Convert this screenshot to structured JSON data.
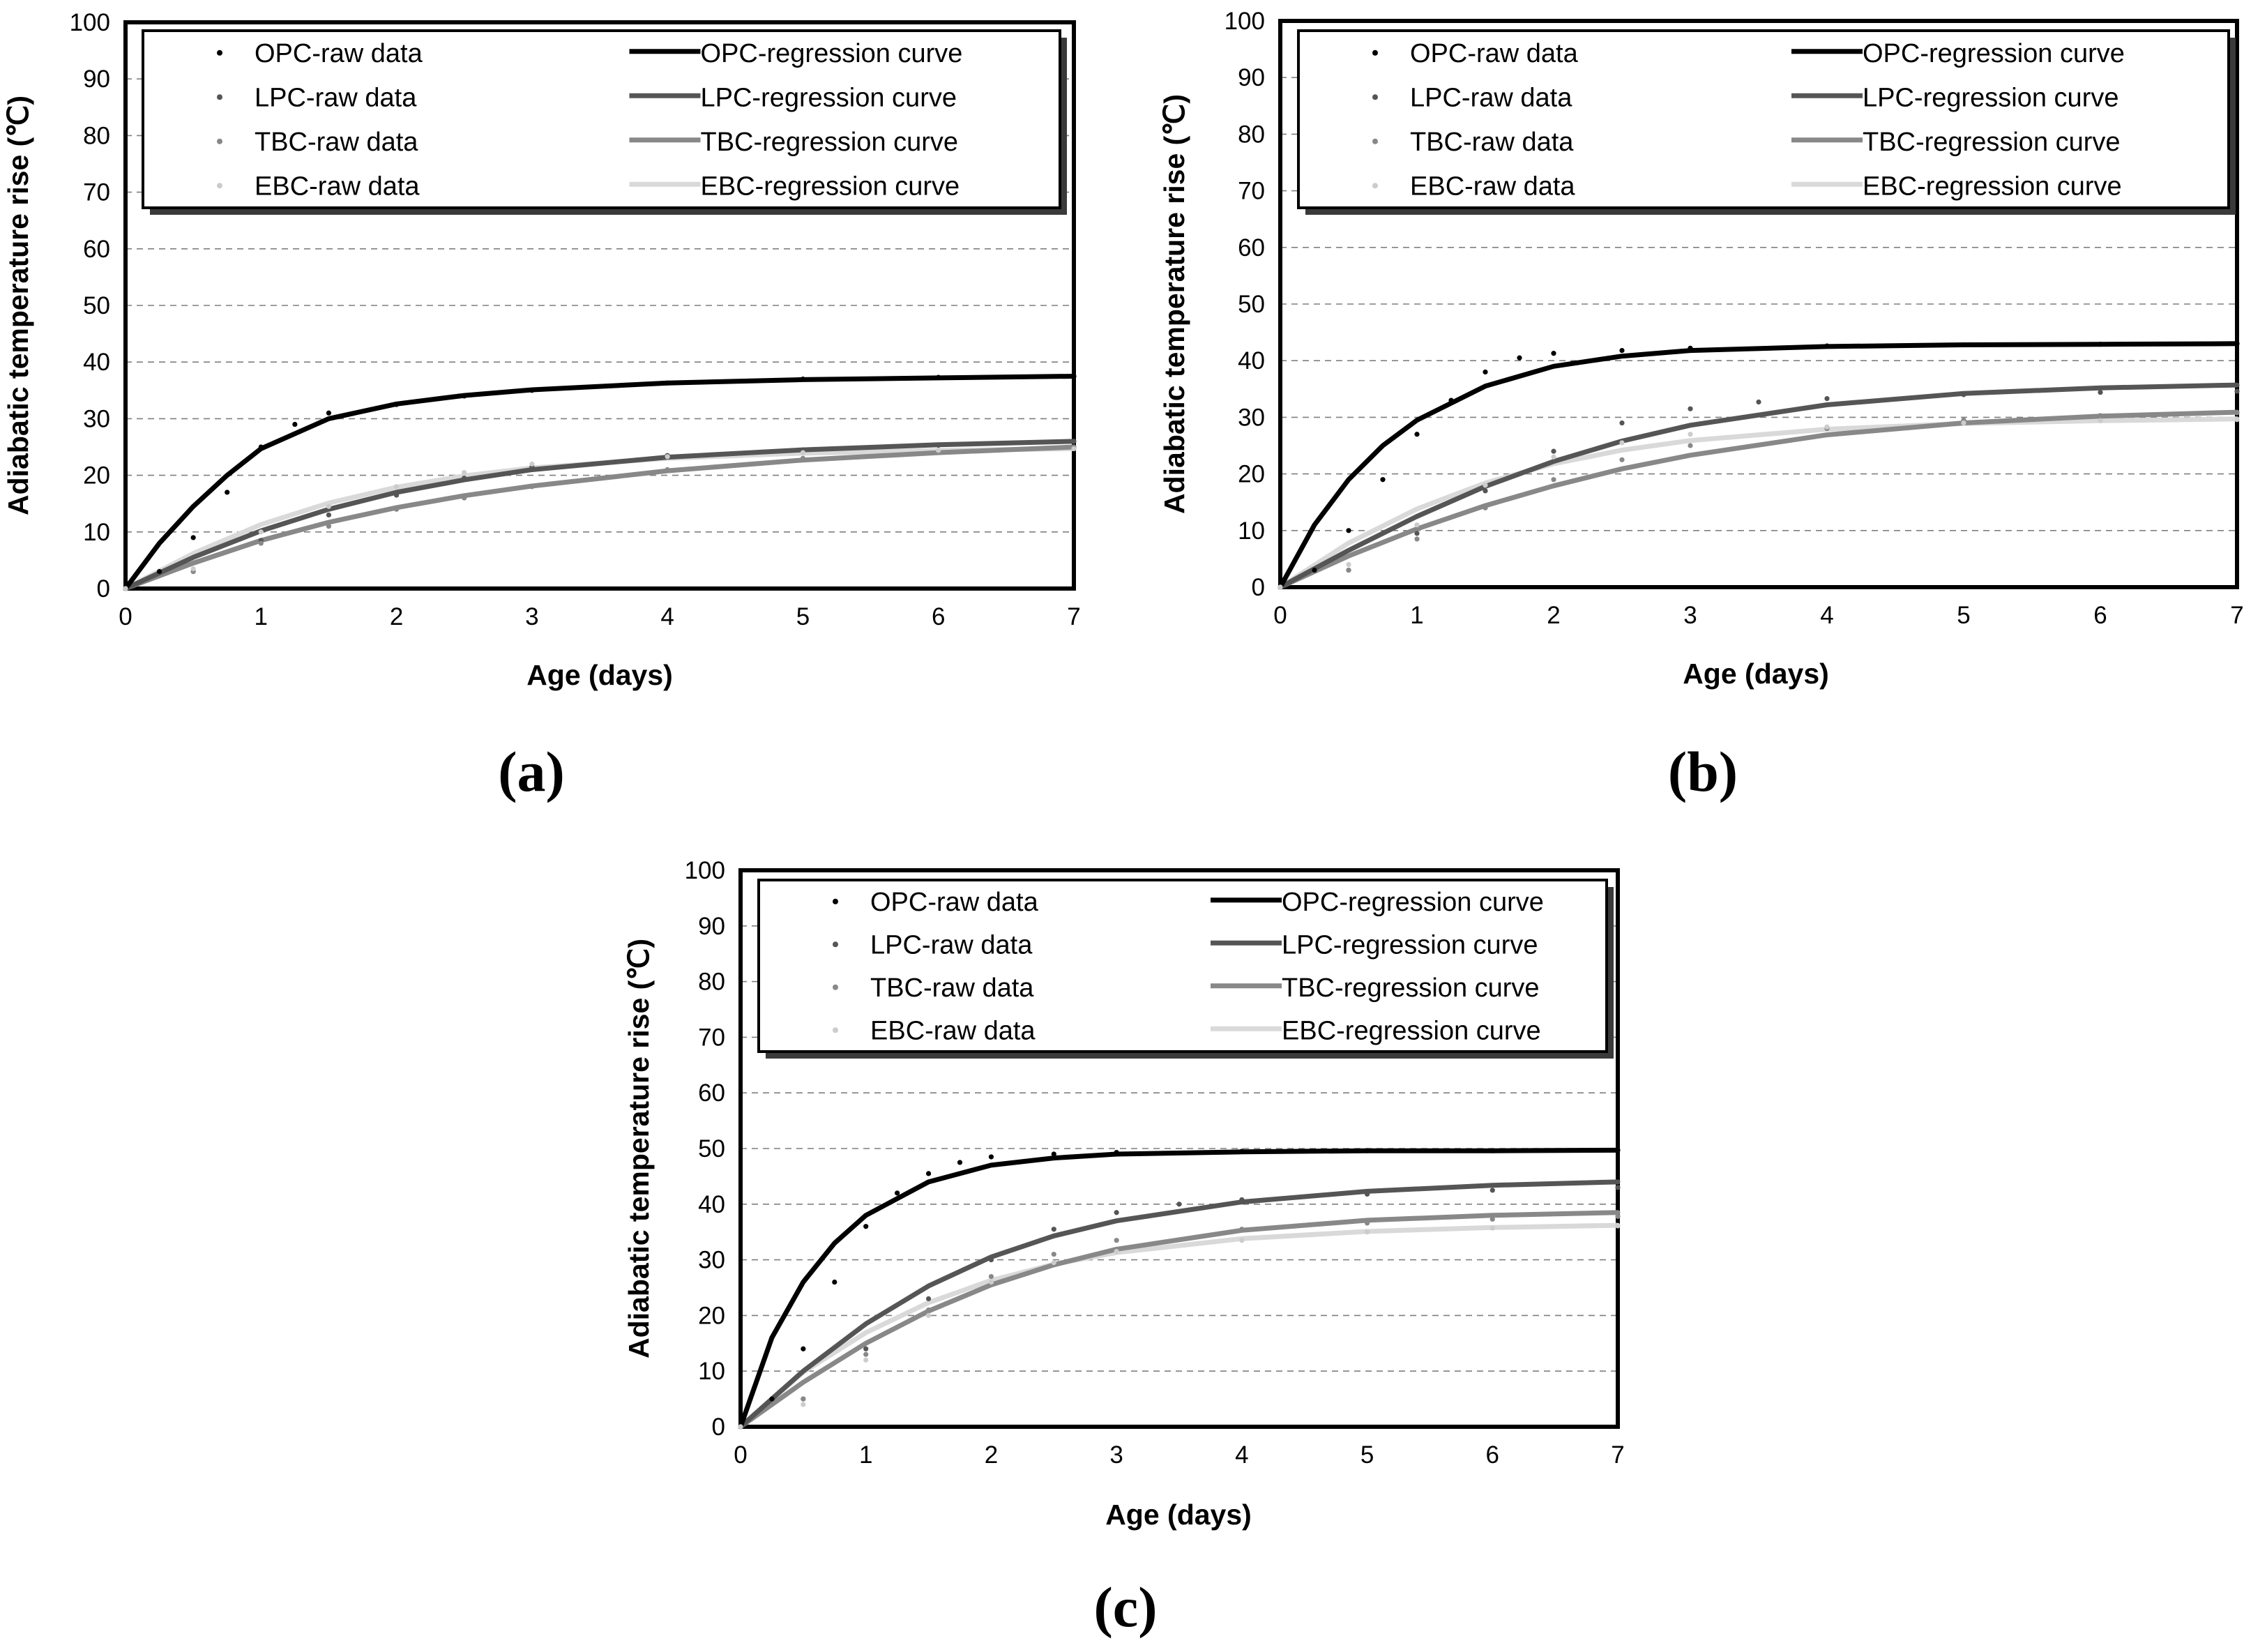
{
  "chart_data": [
    {
      "type": "line",
      "panel_label": "a",
      "title": "",
      "xlabel": "Age (days)",
      "ylabel": "Adiabatic temperature rise (℃)",
      "xlim": [
        0,
        7
      ],
      "ylim": [
        0,
        100
      ],
      "xticks": [
        "0",
        "1",
        "2",
        "3",
        "4",
        "5",
        "6",
        "7"
      ],
      "yticks": [
        "0",
        "10",
        "20",
        "30",
        "40",
        "50",
        "60",
        "70",
        "80",
        "90",
        "100"
      ],
      "grid": "dashed horizontal",
      "legend": {
        "placement": "top",
        "entries": [
          "OPC-raw data",
          "LPC-raw data",
          "TBC-raw data",
          "EBC-raw data",
          "OPC-regression curve",
          "LPC-regression curve",
          "TBC-regression curve",
          "EBC-regression curve"
        ]
      },
      "series": [
        {
          "name": "OPC-raw data",
          "kind": "raw",
          "color": "#000000",
          "x": [
            0,
            0.25,
            0.5,
            0.75,
            1,
            1.25,
            1.5,
            2,
            2.5,
            3,
            4,
            5,
            6,
            7
          ],
          "y": [
            0,
            3,
            9,
            17,
            25,
            29,
            31,
            32.5,
            34,
            35,
            36.3,
            37,
            37.3,
            37.5
          ]
        },
        {
          "name": "OPC-regression curve",
          "kind": "fit",
          "color": "#000000",
          "x": [
            0,
            0.25,
            0.5,
            0.75,
            1,
            1.5,
            2,
            2.5,
            3,
            4,
            5,
            6,
            7
          ],
          "y": [
            0,
            8,
            14.5,
            20,
            24.7,
            30,
            32.6,
            34.1,
            35.1,
            36.3,
            36.9,
            37.2,
            37.5
          ]
        },
        {
          "name": "LPC-raw data",
          "kind": "raw",
          "color": "#555555",
          "x": [
            0,
            0.5,
            1,
            1.5,
            2,
            2.5,
            3,
            4,
            5,
            6,
            7
          ],
          "y": [
            0,
            3,
            8.5,
            13,
            16.5,
            19.5,
            21.5,
            23.5,
            24.5,
            25.3,
            26
          ]
        },
        {
          "name": "LPC-regression curve",
          "kind": "fit",
          "color": "#555555",
          "x": [
            0,
            0.5,
            1,
            1.5,
            2,
            2.5,
            3,
            4,
            5,
            6,
            7
          ],
          "y": [
            0,
            5.5,
            10.2,
            14,
            17,
            19.2,
            21,
            23.2,
            24.5,
            25.4,
            26
          ]
        },
        {
          "name": "TBC-raw data",
          "kind": "raw",
          "color": "#888888",
          "x": [
            0,
            0.5,
            1,
            1.5,
            2,
            2.5,
            3,
            4,
            5,
            6,
            7
          ],
          "y": [
            0,
            3,
            8,
            11,
            14,
            16,
            18,
            21,
            23,
            24.2,
            25
          ]
        },
        {
          "name": "TBC-regression curve",
          "kind": "fit",
          "color": "#888888",
          "x": [
            0,
            0.5,
            1,
            1.5,
            2,
            2.5,
            3,
            4,
            5,
            6,
            7
          ],
          "y": [
            0,
            4.5,
            8.5,
            11.7,
            14.3,
            16.4,
            18.1,
            20.8,
            22.7,
            24,
            25
          ]
        },
        {
          "name": "EBC-raw data",
          "kind": "raw",
          "color": "#cccccc",
          "x": [
            0,
            0.5,
            1,
            1.5,
            2,
            2.5,
            3,
            4,
            5,
            6,
            7
          ],
          "y": [
            0,
            3.5,
            10,
            14.5,
            18,
            20.5,
            22,
            23.3,
            24,
            24.4,
            24.7
          ]
        },
        {
          "name": "EBC-regression curve",
          "kind": "fit",
          "color": "#d9d9d9",
          "x": [
            0,
            0.5,
            1,
            1.5,
            2,
            2.5,
            3,
            4,
            5,
            6,
            7
          ],
          "y": [
            0,
            6.2,
            11.3,
            15.1,
            17.9,
            19.9,
            21.3,
            23,
            23.9,
            24.4,
            24.7
          ]
        }
      ]
    },
    {
      "type": "line",
      "panel_label": "b",
      "title": "",
      "xlabel": "Age (days)",
      "ylabel": "Adiabatic temperature rise (℃)",
      "xlim": [
        0,
        7
      ],
      "ylim": [
        0,
        100
      ],
      "xticks": [
        "0",
        "1",
        "2",
        "3",
        "4",
        "5",
        "6",
        "7"
      ],
      "yticks": [
        "0",
        "10",
        "20",
        "30",
        "40",
        "50",
        "60",
        "70",
        "80",
        "90",
        "100"
      ],
      "grid": "dashed horizontal",
      "legend": {
        "placement": "top",
        "entries": [
          "OPC-raw data",
          "LPC-raw data",
          "TBC-raw data",
          "EBC-raw data",
          "OPC-regression curve",
          "LPC-regression curve",
          "TBC-regression curve",
          "EBC-regression curve"
        ]
      },
      "series": [
        {
          "name": "OPC-raw data",
          "kind": "raw",
          "color": "#000000",
          "x": [
            0,
            0.25,
            0.5,
            0.75,
            1,
            1.25,
            1.5,
            1.75,
            2,
            2.5,
            3,
            4,
            5,
            6,
            7
          ],
          "y": [
            0,
            3,
            10,
            19,
            27,
            33,
            38,
            40.5,
            41.3,
            41.8,
            42.2,
            42.6,
            42.8,
            42.9,
            43
          ]
        },
        {
          "name": "OPC-regression curve",
          "kind": "fit",
          "color": "#000000",
          "x": [
            0,
            0.25,
            0.5,
            0.75,
            1,
            1.5,
            2,
            2.5,
            3,
            4,
            5,
            6,
            7
          ],
          "y": [
            0,
            11,
            19,
            25,
            29.5,
            35.5,
            39,
            40.8,
            41.8,
            42.5,
            42.8,
            42.9,
            43
          ]
        },
        {
          "name": "LPC-raw data",
          "kind": "raw",
          "color": "#555555",
          "x": [
            0,
            0.5,
            1,
            1.5,
            2,
            2.5,
            3,
            3.5,
            4,
            5,
            6,
            7
          ],
          "y": [
            0,
            3,
            9.5,
            17,
            24,
            29,
            31.5,
            32.7,
            33.3,
            34,
            34.4,
            34.6
          ]
        },
        {
          "name": "LPC-regression curve",
          "kind": "fit",
          "color": "#555555",
          "x": [
            0,
            0.5,
            1,
            1.5,
            2,
            2.5,
            3,
            4,
            5,
            6,
            7
          ],
          "y": [
            0,
            6.5,
            12.5,
            17.8,
            22.2,
            25.8,
            28.6,
            32.2,
            34.2,
            35.2,
            35.7
          ]
        },
        {
          "name": "TBC-raw data",
          "kind": "raw",
          "color": "#888888",
          "x": [
            0,
            0.5,
            1,
            1.5,
            2,
            2.5,
            3,
            4,
            5,
            6,
            7
          ],
          "y": [
            0,
            3,
            8.5,
            14,
            19,
            22.5,
            25,
            28,
            29.5,
            30.3,
            30.8
          ]
        },
        {
          "name": "TBC-regression curve",
          "kind": "fit",
          "color": "#888888",
          "x": [
            0,
            0.5,
            1,
            1.5,
            2,
            2.5,
            3,
            4,
            5,
            6,
            7
          ],
          "y": [
            0,
            5.5,
            10.3,
            14.4,
            17.9,
            20.9,
            23.3,
            26.9,
            29,
            30.2,
            30.9
          ]
        },
        {
          "name": "EBC-raw data",
          "kind": "raw",
          "color": "#cccccc",
          "x": [
            0,
            0.5,
            1,
            1.5,
            2,
            2.5,
            3,
            4,
            5,
            6,
            7
          ],
          "y": [
            0,
            4,
            11,
            18,
            23,
            25.5,
            27,
            28.3,
            29,
            29.4,
            29.6
          ]
        },
        {
          "name": "EBC-regression curve",
          "kind": "fit",
          "color": "#d9d9d9",
          "x": [
            0,
            0.5,
            1,
            1.5,
            2,
            2.5,
            3,
            4,
            5,
            6,
            7
          ],
          "y": [
            0,
            7.8,
            13.8,
            18.4,
            21.8,
            24.2,
            25.9,
            27.9,
            28.9,
            29.4,
            29.7
          ]
        }
      ]
    },
    {
      "type": "line",
      "panel_label": "c",
      "title": "",
      "xlabel": "Age (days)",
      "ylabel": "Adiabatic temperature rise (℃)",
      "xlim": [
        0,
        7
      ],
      "ylim": [
        0,
        100
      ],
      "xticks": [
        "0",
        "1",
        "2",
        "3",
        "4",
        "5",
        "6",
        "7"
      ],
      "yticks": [
        "0",
        "10",
        "20",
        "30",
        "40",
        "50",
        "60",
        "70",
        "80",
        "90",
        "100"
      ],
      "grid": "dashed horizontal",
      "legend": {
        "placement": "top",
        "entries": [
          "OPC-raw data",
          "LPC-raw data",
          "TBC-raw data",
          "EBC-raw data",
          "OPC-regression curve",
          "LPC-regression curve",
          "TBC-regression curve",
          "EBC-regression curve"
        ]
      },
      "series": [
        {
          "name": "OPC-raw data",
          "kind": "raw",
          "color": "#000000",
          "x": [
            0,
            0.25,
            0.5,
            0.75,
            1,
            1.25,
            1.5,
            1.75,
            2,
            2.5,
            3,
            4,
            5,
            6,
            7
          ],
          "y": [
            0,
            5,
            14,
            26,
            36,
            42,
            45.5,
            47.5,
            48.5,
            49,
            49.3,
            49.5,
            49.6,
            49.6,
            49.7
          ]
        },
        {
          "name": "OPC-regression curve",
          "kind": "fit",
          "color": "#000000",
          "x": [
            0,
            0.25,
            0.5,
            0.75,
            1,
            1.5,
            2,
            2.5,
            3,
            4,
            5,
            6,
            7
          ],
          "y": [
            0,
            16,
            26,
            33,
            38,
            44,
            47,
            48.3,
            49,
            49.4,
            49.6,
            49.6,
            49.7
          ]
        },
        {
          "name": "LPC-raw data",
          "kind": "raw",
          "color": "#555555",
          "x": [
            0,
            0.5,
            1,
            1.5,
            2,
            2.5,
            3,
            3.5,
            4,
            5,
            6,
            7
          ],
          "y": [
            0,
            5,
            14,
            23,
            30,
            35.5,
            38.5,
            40,
            40.8,
            41.8,
            42.5,
            43
          ]
        },
        {
          "name": "LPC-regression curve",
          "kind": "fit",
          "color": "#555555",
          "x": [
            0,
            0.5,
            1,
            1.5,
            2,
            2.5,
            3,
            4,
            5,
            6,
            7
          ],
          "y": [
            0,
            10,
            18.5,
            25.3,
            30.5,
            34.3,
            37,
            40.4,
            42.3,
            43.4,
            44
          ]
        },
        {
          "name": "TBC-raw data",
          "kind": "raw",
          "color": "#888888",
          "x": [
            0,
            0.5,
            1,
            1.5,
            2,
            2.5,
            3,
            4,
            5,
            6,
            7
          ],
          "y": [
            0,
            5,
            13,
            21,
            27,
            31,
            33.5,
            35.5,
            36.6,
            37.3,
            37.8
          ]
        },
        {
          "name": "TBC-regression curve",
          "kind": "fit",
          "color": "#888888",
          "x": [
            0,
            0.5,
            1,
            1.5,
            2,
            2.5,
            3,
            4,
            5,
            6,
            7
          ],
          "y": [
            0,
            8,
            15,
            20.8,
            25.5,
            29.1,
            31.9,
            35.3,
            37.1,
            38,
            38.5
          ]
        },
        {
          "name": "EBC-raw data",
          "kind": "raw",
          "color": "#cccccc",
          "x": [
            0,
            0.5,
            1,
            1.5,
            2,
            2.5,
            3,
            4,
            5,
            6,
            7
          ],
          "y": [
            0,
            4,
            12,
            20,
            26,
            29.5,
            31.5,
            33.5,
            35,
            35.7,
            36.1
          ]
        },
        {
          "name": "EBC-regression curve",
          "kind": "fit",
          "color": "#d9d9d9",
          "x": [
            0,
            0.5,
            1,
            1.5,
            2,
            2.5,
            3,
            4,
            5,
            6,
            7
          ],
          "y": [
            0,
            9.8,
            16.9,
            22.3,
            26.3,
            29.2,
            31.3,
            33.8,
            35.1,
            35.8,
            36.2
          ]
        }
      ]
    }
  ]
}
